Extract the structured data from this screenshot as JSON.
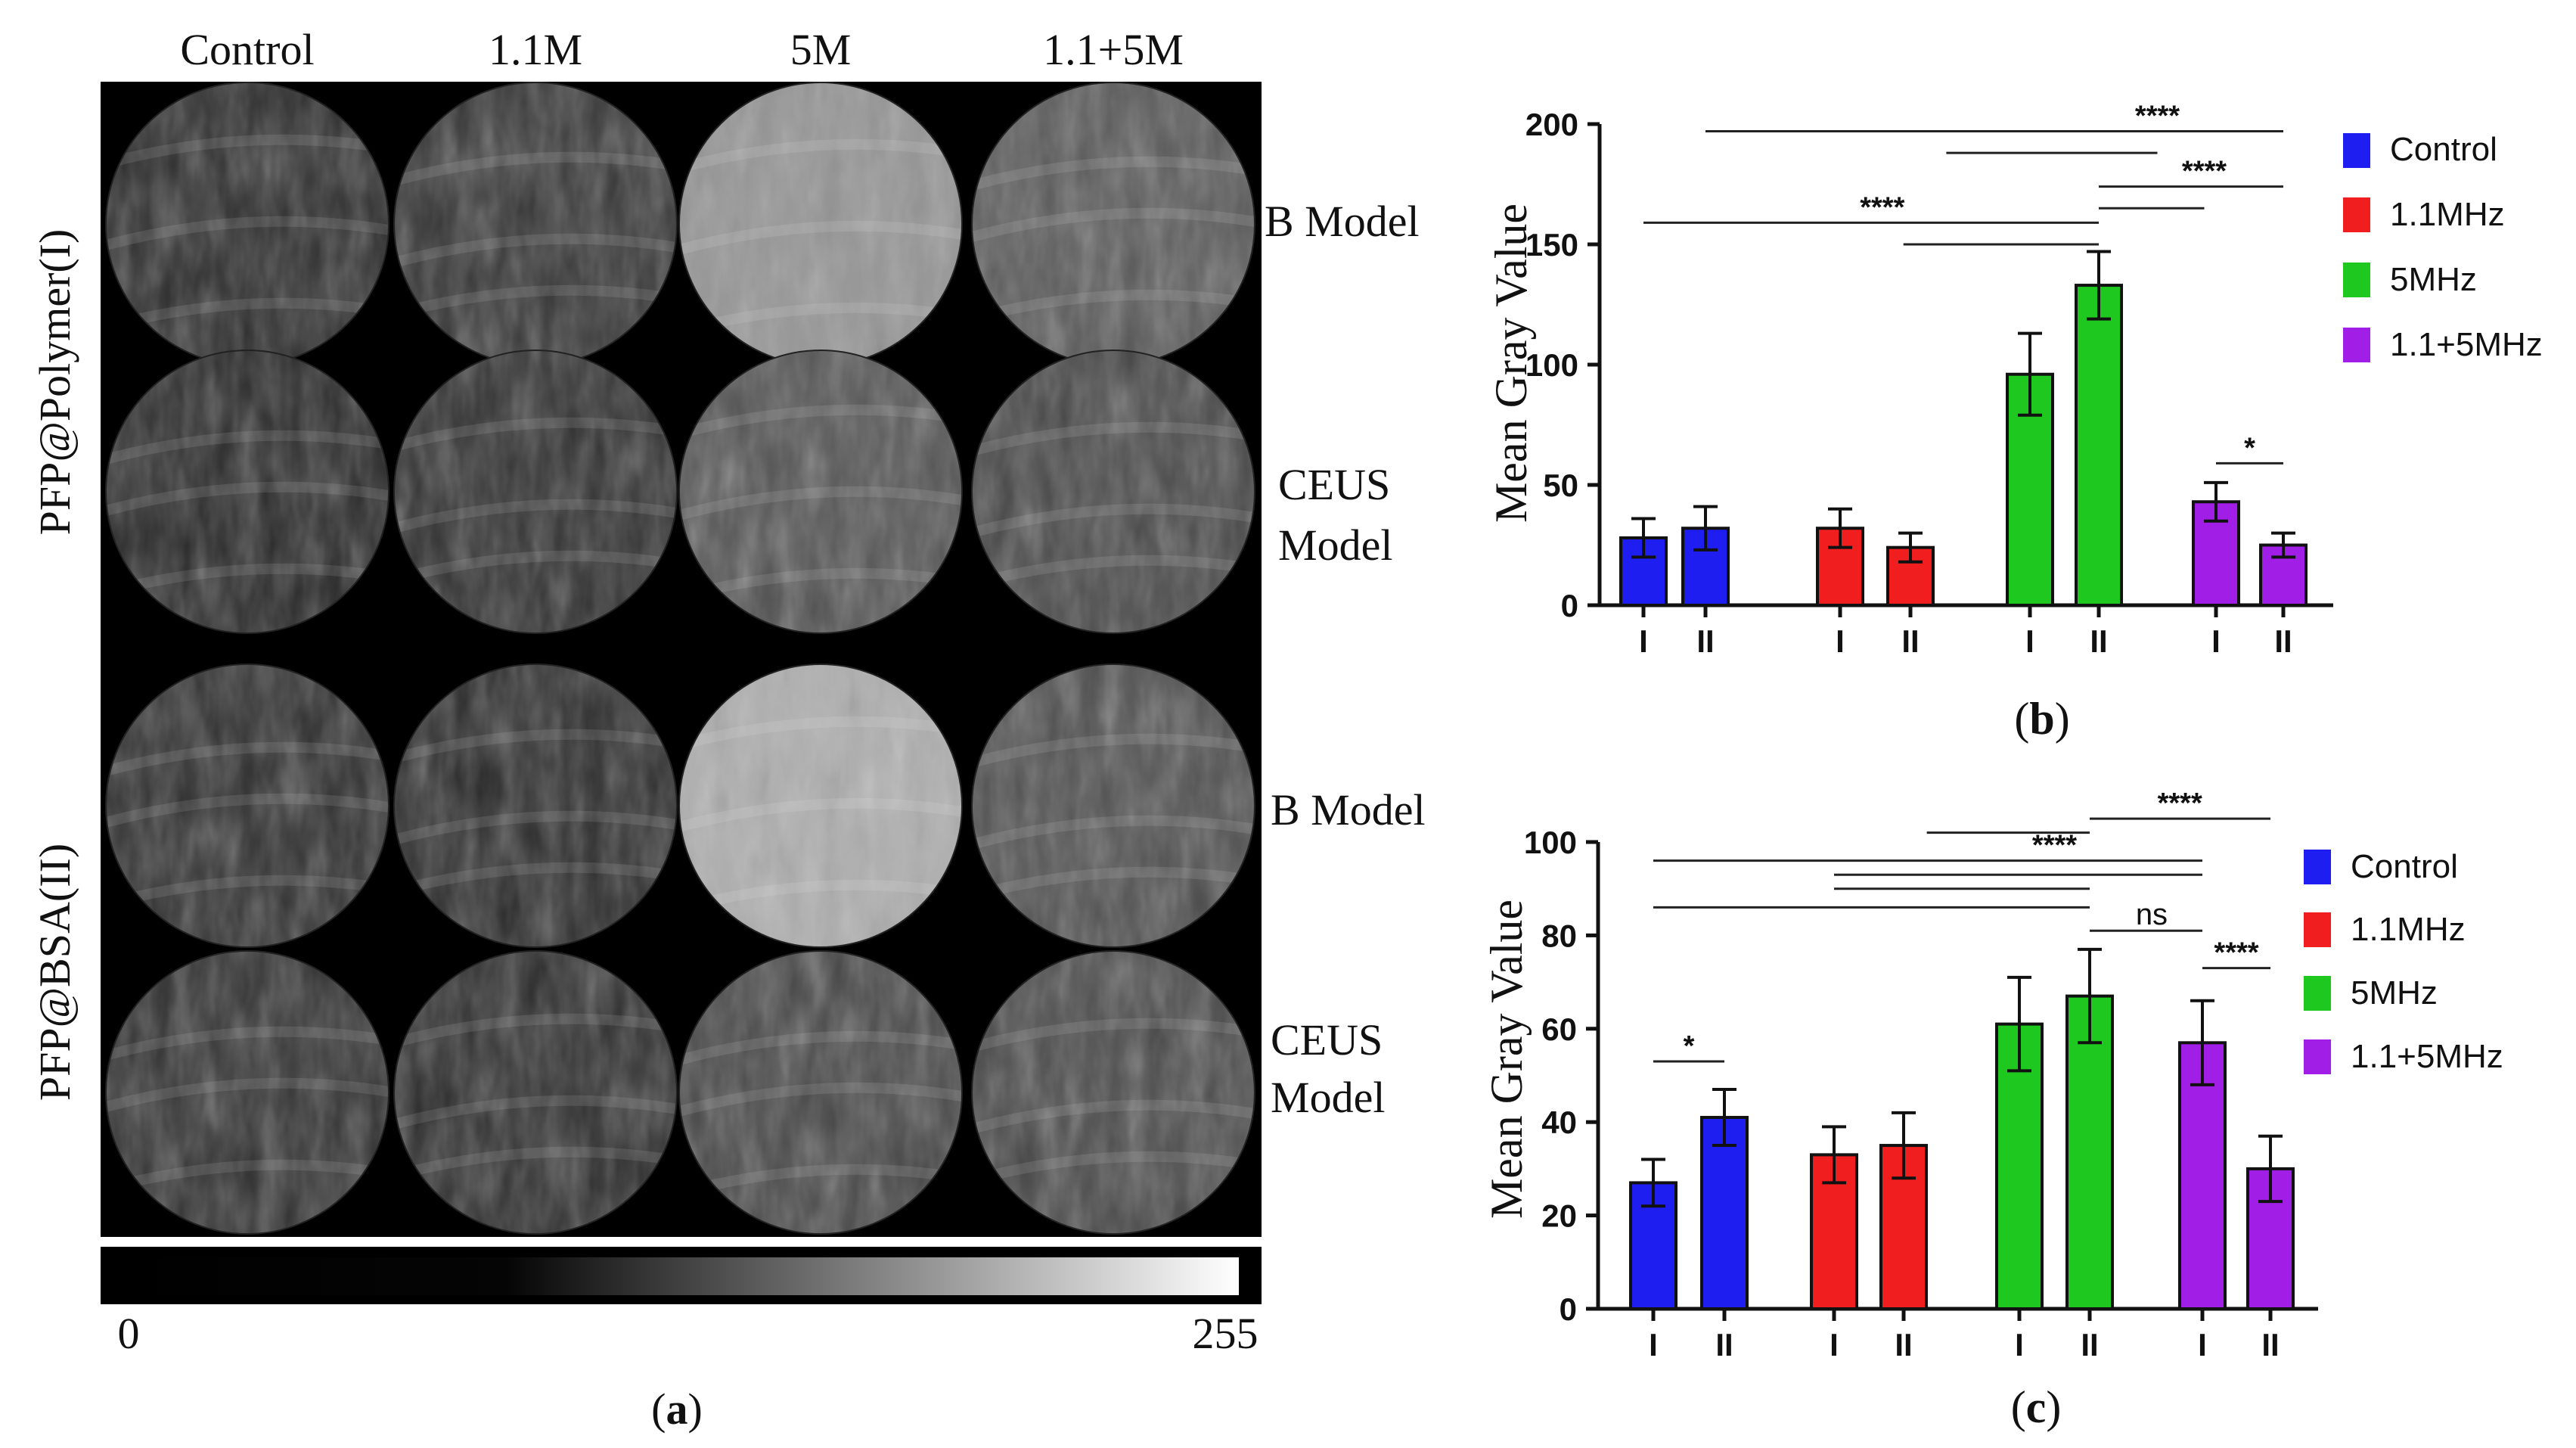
{
  "panel_a": {
    "columns": [
      "Control",
      "1.1M",
      "5M",
      "1.1+5M"
    ],
    "row_groups": [
      "PFP@Polymer(I)",
      "PFP@BSA(II)"
    ],
    "row_labels": [
      "B Model",
      "CEUS\nModel",
      "B Model",
      "CEUS\nModel"
    ],
    "image_brightness": [
      [
        42,
        52,
        150,
        88
      ],
      [
        38,
        45,
        82,
        70
      ],
      [
        45,
        42,
        175,
        78
      ],
      [
        48,
        44,
        70,
        72
      ]
    ],
    "scale_min": "0",
    "scale_max": "255",
    "caption_open": "(",
    "caption_letter": "a",
    "caption_close": ")"
  },
  "legend": [
    "Control",
    "1.1MHz",
    "5MHz",
    "1.1+5MHz"
  ],
  "colors": {
    "Control": "#1e1ef0",
    "1.1MHz": "#f01e1e",
    "5MHz": "#1ec81e",
    "1.1+5MHz": "#a01ee6"
  },
  "chart_data": [
    {
      "id": "b",
      "type": "bar",
      "ylabel": "Mean Gray Value",
      "ylim": [
        0,
        200
      ],
      "yticks": [
        0,
        50,
        100,
        150,
        200
      ],
      "tick_labels": [
        "I",
        "II",
        "I",
        "II",
        "I",
        "II",
        "I",
        "II"
      ],
      "groups": [
        "Control",
        "1.1MHz",
        "5MHz",
        "1.1+5MHz"
      ],
      "values": [
        28,
        32,
        32,
        24,
        96,
        133,
        43,
        25
      ],
      "errors": [
        8,
        9,
        8,
        6,
        17,
        14,
        8,
        5
      ],
      "significance": [
        {
          "label": "****",
          "level": 197,
          "from": 1,
          "to": 7,
          "text_at": 5.5
        },
        {
          "label": "",
          "level": 188,
          "from": 3.3,
          "to": 5.5
        },
        {
          "label": "****",
          "level": 174,
          "from": 5,
          "to": 7,
          "text_at": 5.9
        },
        {
          "label": "****",
          "level": 159,
          "from": 0,
          "to": 5,
          "text_at": 2.6
        },
        {
          "label": "",
          "level": 165,
          "from": 5,
          "to": 5.9
        },
        {
          "label": "",
          "level": 150,
          "from": 2.9,
          "to": 5
        },
        {
          "label": "*",
          "level": 59,
          "from": 6,
          "to": 7,
          "text_at": 6.5
        }
      ],
      "caption_open": "(",
      "caption_letter": "b",
      "caption_close": ")"
    },
    {
      "id": "c",
      "type": "bar",
      "ylabel": "Mean Gray Value",
      "ylim": [
        0,
        100
      ],
      "yticks": [
        0,
        20,
        40,
        60,
        80,
        100
      ],
      "tick_labels": [
        "I",
        "II",
        "I",
        "II",
        "I",
        "II",
        "I",
        "II"
      ],
      "groups": [
        "Control",
        "1.1MHz",
        "5MHz",
        "1.1+5MHz"
      ],
      "values": [
        27,
        41,
        33,
        35,
        61,
        67,
        57,
        30
      ],
      "errors": [
        5,
        6,
        6,
        7,
        10,
        10,
        9,
        7
      ],
      "significance": [
        {
          "label": "****",
          "level": 105,
          "from": 5,
          "to": 7,
          "text_at": 5.8
        },
        {
          "label": "",
          "level": 102,
          "from": 3.2,
          "to": 5
        },
        {
          "label": "****",
          "level": 96,
          "from": 0,
          "to": 6,
          "text_at": 4.5
        },
        {
          "label": "",
          "level": 93,
          "from": 2,
          "to": 6
        },
        {
          "label": "",
          "level": 90,
          "from": 2,
          "to": 5
        },
        {
          "label": "",
          "level": 86,
          "from": 0,
          "to": 5
        },
        {
          "label": "ns",
          "level": 81,
          "from": 5,
          "to": 6,
          "text_at": 5.55
        },
        {
          "label": "****",
          "level": 73,
          "from": 6,
          "to": 7,
          "text_at": 6.5
        },
        {
          "label": "*",
          "level": 53,
          "from": 0,
          "to": 1,
          "text_at": 0.5
        }
      ],
      "caption_open": "(",
      "caption_letter": "c",
      "caption_close": ")"
    }
  ]
}
